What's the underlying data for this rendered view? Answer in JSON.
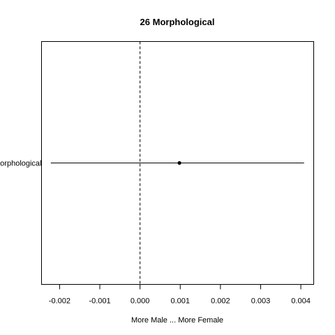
{
  "chart_data": {
    "type": "scatter",
    "title": "26 Morphological",
    "xlabel": "More Male ... More Female",
    "ylabel": "",
    "xlim": [
      -0.00245,
      0.00432
    ],
    "x_ticks": [
      {
        "value": -0.002,
        "label": "-0.002"
      },
      {
        "value": -0.001,
        "label": "-0.001"
      },
      {
        "value": 0.0,
        "label": "0.000"
      },
      {
        "value": 0.001,
        "label": "0.001"
      },
      {
        "value": 0.002,
        "label": "0.002"
      },
      {
        "value": 0.003,
        "label": "0.003"
      },
      {
        "value": 0.004,
        "label": "0.004"
      }
    ],
    "categories": [
      "Morphological"
    ],
    "points": [
      {
        "category": "Morphological",
        "x": 0.00098,
        "lower": -0.00222,
        "upper": 0.00408
      }
    ],
    "reference_line": {
      "x": 0.0,
      "style": "dashed"
    },
    "grid": false,
    "legend": "none"
  }
}
